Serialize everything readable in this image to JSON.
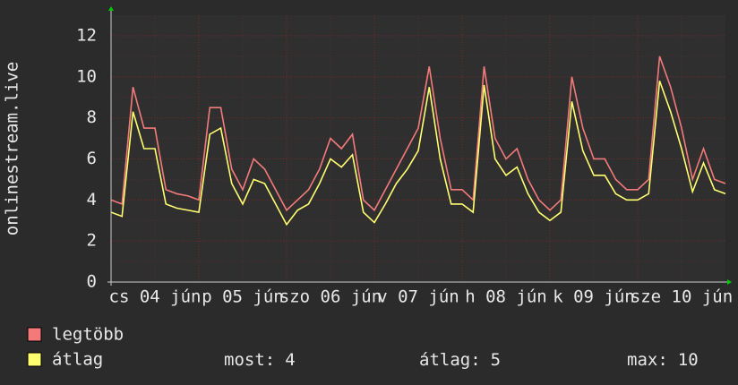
{
  "chart_data": {
    "type": "line",
    "y_label": "onlinestream.live",
    "x": [
      0,
      3,
      6,
      9,
      12,
      15,
      18,
      21,
      24,
      27,
      30,
      33,
      36,
      39,
      42,
      45,
      48,
      51,
      54,
      57,
      60,
      63,
      66,
      69,
      72,
      75,
      78,
      81,
      84,
      87,
      90,
      93,
      96,
      99,
      102,
      105,
      108,
      111,
      114,
      117,
      120,
      123,
      126,
      129,
      132,
      135,
      138,
      141,
      144,
      147,
      150,
      153,
      156,
      159,
      162,
      165,
      168
    ],
    "xlim": [
      0,
      168
    ],
    "xticks": [
      {
        "value": 12,
        "label": "cs 04 jún"
      },
      {
        "value": 36,
        "label": "p 05 jún"
      },
      {
        "value": 60,
        "label": "szo 06 jún"
      },
      {
        "value": 84,
        "label": "v 07 jún"
      },
      {
        "value": 108,
        "label": "h 08 jún"
      },
      {
        "value": 132,
        "label": "k 09 jún"
      },
      {
        "value": 156,
        "label": "sze 10 jún"
      }
    ],
    "ylim": [
      0,
      13
    ],
    "yticks": [
      0,
      2,
      4,
      6,
      8,
      10,
      12
    ],
    "grid": true,
    "series": [
      {
        "name": "legtöbb",
        "color": "#f47a7a",
        "values": [
          4.0,
          3.8,
          9.5,
          7.5,
          7.5,
          4.5,
          4.3,
          4.2,
          4.0,
          8.5,
          8.5,
          5.5,
          4.5,
          6.0,
          5.5,
          4.5,
          3.5,
          4.0,
          4.5,
          5.5,
          7.0,
          6.5,
          7.2,
          4.0,
          3.5,
          4.5,
          5.5,
          6.5,
          7.5,
          10.5,
          7.0,
          4.5,
          4.5,
          4.0,
          10.5,
          7.0,
          6.0,
          6.5,
          5.0,
          4.0,
          3.5,
          4.0,
          10.0,
          7.5,
          6.0,
          6.0,
          5.0,
          4.5,
          4.5,
          5.0,
          11.0,
          9.5,
          7.5,
          5.0,
          6.5,
          5.0,
          4.8
        ]
      },
      {
        "name": "átlag",
        "color": "#ffff70",
        "values": [
          3.4,
          3.2,
          8.3,
          6.5,
          6.5,
          3.8,
          3.6,
          3.5,
          3.4,
          7.2,
          7.5,
          4.8,
          3.8,
          5.0,
          4.8,
          3.8,
          2.8,
          3.5,
          3.8,
          4.8,
          6.0,
          5.6,
          6.2,
          3.4,
          2.9,
          3.8,
          4.8,
          5.5,
          6.4,
          9.5,
          6.0,
          3.8,
          3.8,
          3.4,
          9.6,
          6.0,
          5.2,
          5.6,
          4.3,
          3.4,
          3.0,
          3.4,
          8.8,
          6.4,
          5.2,
          5.2,
          4.3,
          4.0,
          4.0,
          4.3,
          9.8,
          8.3,
          6.5,
          4.4,
          5.8,
          4.5,
          4.3
        ]
      }
    ],
    "stats": [
      {
        "label": "most:",
        "value": 4
      },
      {
        "label": "átlag:",
        "value": 5
      },
      {
        "label": "max:",
        "value": 10
      }
    ]
  }
}
